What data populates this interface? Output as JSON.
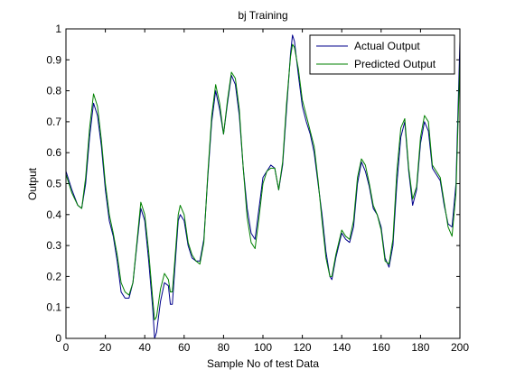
{
  "chart_data": {
    "type": "line",
    "title": "bj Training",
    "xlabel": "Sample No of test Data",
    "ylabel": "Output",
    "xlim": [
      0,
      200
    ],
    "ylim": [
      0,
      1
    ],
    "xticks": [
      0,
      20,
      40,
      60,
      80,
      100,
      120,
      140,
      160,
      180,
      200
    ],
    "yticks": [
      0,
      0.1,
      0.2,
      0.3,
      0.4,
      0.5,
      0.6,
      0.7,
      0.8,
      0.9,
      1
    ],
    "xtick_labels": [
      "0",
      "20",
      "40",
      "60",
      "80",
      "100",
      "120",
      "140",
      "160",
      "180",
      "200"
    ],
    "ytick_labels": [
      "0",
      "0.1",
      "0.2",
      "0.3",
      "0.4",
      "0.5",
      "0.6",
      "0.7",
      "0.8",
      "0.9",
      "1"
    ],
    "grid": false,
    "legend_position": "top-right",
    "series": [
      {
        "name": "Actual Output",
        "color": "#00008b",
        "points": [
          [
            0,
            0.54
          ],
          [
            3,
            0.48
          ],
          [
            6,
            0.43
          ],
          [
            8,
            0.42
          ],
          [
            10,
            0.5
          ],
          [
            12,
            0.65
          ],
          [
            14,
            0.76
          ],
          [
            16,
            0.72
          ],
          [
            18,
            0.62
          ],
          [
            20,
            0.48
          ],
          [
            22,
            0.38
          ],
          [
            24,
            0.33
          ],
          [
            26,
            0.25
          ],
          [
            28,
            0.15
          ],
          [
            30,
            0.13
          ],
          [
            32,
            0.13
          ],
          [
            34,
            0.18
          ],
          [
            36,
            0.3
          ],
          [
            38,
            0.42
          ],
          [
            40,
            0.38
          ],
          [
            42,
            0.25
          ],
          [
            44,
            0.1
          ],
          [
            45,
            0.0
          ],
          [
            46,
            0.02
          ],
          [
            48,
            0.12
          ],
          [
            50,
            0.18
          ],
          [
            52,
            0.17
          ],
          [
            53,
            0.11
          ],
          [
            54,
            0.11
          ],
          [
            55,
            0.2
          ],
          [
            57,
            0.38
          ],
          [
            58,
            0.4
          ],
          [
            60,
            0.38
          ],
          [
            62,
            0.3
          ],
          [
            64,
            0.26
          ],
          [
            66,
            0.25
          ],
          [
            68,
            0.25
          ],
          [
            70,
            0.32
          ],
          [
            72,
            0.52
          ],
          [
            74,
            0.7
          ],
          [
            76,
            0.8
          ],
          [
            78,
            0.74
          ],
          [
            80,
            0.66
          ],
          [
            82,
            0.76
          ],
          [
            84,
            0.85
          ],
          [
            86,
            0.82
          ],
          [
            88,
            0.72
          ],
          [
            90,
            0.55
          ],
          [
            92,
            0.42
          ],
          [
            94,
            0.34
          ],
          [
            96,
            0.32
          ],
          [
            98,
            0.42
          ],
          [
            100,
            0.52
          ],
          [
            102,
            0.54
          ],
          [
            104,
            0.56
          ],
          [
            106,
            0.55
          ],
          [
            108,
            0.48
          ],
          [
            110,
            0.56
          ],
          [
            112,
            0.74
          ],
          [
            114,
            0.92
          ],
          [
            115,
            0.98
          ],
          [
            116,
            0.96
          ],
          [
            118,
            0.85
          ],
          [
            120,
            0.75
          ],
          [
            122,
            0.7
          ],
          [
            124,
            0.66
          ],
          [
            126,
            0.6
          ],
          [
            128,
            0.5
          ],
          [
            130,
            0.4
          ],
          [
            132,
            0.28
          ],
          [
            134,
            0.2
          ],
          [
            135,
            0.19
          ],
          [
            137,
            0.26
          ],
          [
            140,
            0.34
          ],
          [
            142,
            0.32
          ],
          [
            144,
            0.31
          ],
          [
            146,
            0.36
          ],
          [
            148,
            0.5
          ],
          [
            150,
            0.57
          ],
          [
            152,
            0.54
          ],
          [
            154,
            0.49
          ],
          [
            156,
            0.42
          ],
          [
            158,
            0.4
          ],
          [
            160,
            0.36
          ],
          [
            162,
            0.26
          ],
          [
            164,
            0.23
          ],
          [
            166,
            0.3
          ],
          [
            168,
            0.5
          ],
          [
            170,
            0.65
          ],
          [
            172,
            0.7
          ],
          [
            174,
            0.54
          ],
          [
            176,
            0.43
          ],
          [
            178,
            0.48
          ],
          [
            180,
            0.63
          ],
          [
            182,
            0.7
          ],
          [
            184,
            0.67
          ],
          [
            186,
            0.55
          ],
          [
            188,
            0.53
          ],
          [
            190,
            0.51
          ],
          [
            192,
            0.43
          ],
          [
            194,
            0.37
          ],
          [
            196,
            0.36
          ],
          [
            198,
            0.5
          ],
          [
            200,
            0.96
          ]
        ]
      },
      {
        "name": "Predicted Output",
        "color": "#008000",
        "points": [
          [
            0,
            0.53
          ],
          [
            3,
            0.47
          ],
          [
            6,
            0.43
          ],
          [
            8,
            0.42
          ],
          [
            10,
            0.52
          ],
          [
            12,
            0.68
          ],
          [
            14,
            0.79
          ],
          [
            16,
            0.75
          ],
          [
            18,
            0.64
          ],
          [
            20,
            0.5
          ],
          [
            22,
            0.4
          ],
          [
            24,
            0.34
          ],
          [
            26,
            0.27
          ],
          [
            28,
            0.18
          ],
          [
            30,
            0.15
          ],
          [
            32,
            0.14
          ],
          [
            34,
            0.18
          ],
          [
            36,
            0.31
          ],
          [
            38,
            0.44
          ],
          [
            40,
            0.4
          ],
          [
            42,
            0.28
          ],
          [
            44,
            0.13
          ],
          [
            45,
            0.06
          ],
          [
            46,
            0.07
          ],
          [
            48,
            0.16
          ],
          [
            50,
            0.21
          ],
          [
            52,
            0.19
          ],
          [
            53,
            0.15
          ],
          [
            54,
            0.15
          ],
          [
            55,
            0.23
          ],
          [
            57,
            0.4
          ],
          [
            58,
            0.43
          ],
          [
            60,
            0.4
          ],
          [
            62,
            0.31
          ],
          [
            64,
            0.27
          ],
          [
            66,
            0.25
          ],
          [
            68,
            0.24
          ],
          [
            70,
            0.31
          ],
          [
            72,
            0.53
          ],
          [
            74,
            0.72
          ],
          [
            76,
            0.82
          ],
          [
            78,
            0.76
          ],
          [
            80,
            0.66
          ],
          [
            82,
            0.77
          ],
          [
            84,
            0.86
          ],
          [
            86,
            0.84
          ],
          [
            88,
            0.74
          ],
          [
            90,
            0.55
          ],
          [
            92,
            0.39
          ],
          [
            94,
            0.31
          ],
          [
            96,
            0.29
          ],
          [
            98,
            0.39
          ],
          [
            100,
            0.5
          ],
          [
            102,
            0.54
          ],
          [
            104,
            0.55
          ],
          [
            106,
            0.55
          ],
          [
            108,
            0.48
          ],
          [
            110,
            0.57
          ],
          [
            112,
            0.76
          ],
          [
            114,
            0.91
          ],
          [
            115,
            0.95
          ],
          [
            116,
            0.94
          ],
          [
            118,
            0.87
          ],
          [
            120,
            0.77
          ],
          [
            122,
            0.72
          ],
          [
            124,
            0.67
          ],
          [
            126,
            0.62
          ],
          [
            128,
            0.51
          ],
          [
            130,
            0.38
          ],
          [
            132,
            0.26
          ],
          [
            134,
            0.2
          ],
          [
            135,
            0.2
          ],
          [
            137,
            0.27
          ],
          [
            140,
            0.35
          ],
          [
            142,
            0.33
          ],
          [
            144,
            0.32
          ],
          [
            146,
            0.38
          ],
          [
            148,
            0.52
          ],
          [
            150,
            0.58
          ],
          [
            152,
            0.56
          ],
          [
            154,
            0.5
          ],
          [
            156,
            0.43
          ],
          [
            158,
            0.4
          ],
          [
            160,
            0.35
          ],
          [
            162,
            0.25
          ],
          [
            164,
            0.24
          ],
          [
            166,
            0.32
          ],
          [
            168,
            0.54
          ],
          [
            170,
            0.68
          ],
          [
            172,
            0.71
          ],
          [
            174,
            0.55
          ],
          [
            176,
            0.45
          ],
          [
            178,
            0.49
          ],
          [
            180,
            0.65
          ],
          [
            182,
            0.72
          ],
          [
            184,
            0.7
          ],
          [
            186,
            0.56
          ],
          [
            188,
            0.54
          ],
          [
            190,
            0.52
          ],
          [
            192,
            0.44
          ],
          [
            194,
            0.36
          ],
          [
            196,
            0.33
          ],
          [
            198,
            0.47
          ],
          [
            200,
            0.9
          ]
        ]
      }
    ]
  }
}
